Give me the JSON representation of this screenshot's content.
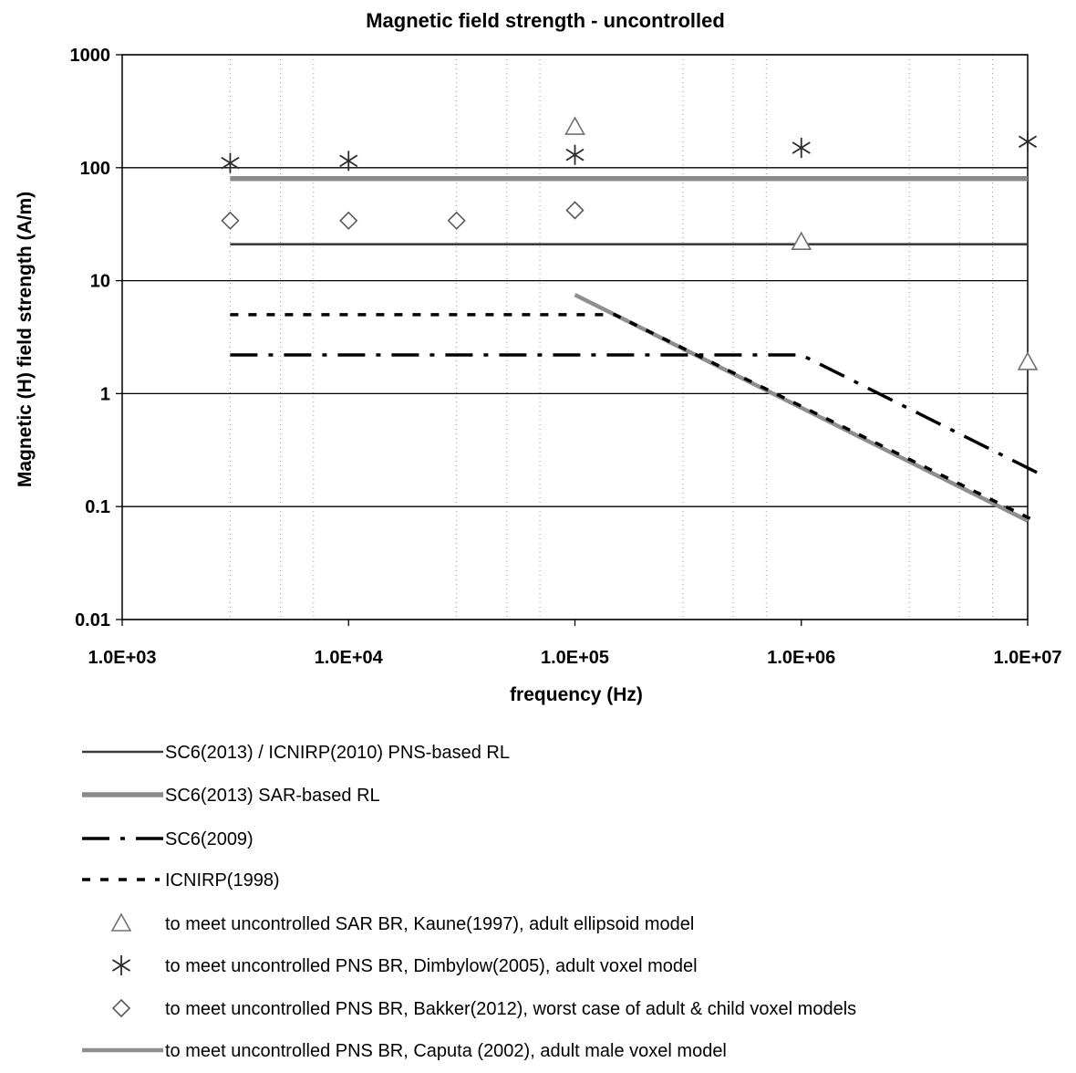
{
  "chart_data": {
    "type": "line",
    "title": "Magnetic field strength - uncontrolled",
    "xlabel": "frequency (Hz)",
    "ylabel": "Magnetic (H) field strength (A/m)",
    "xscale": "log",
    "yscale": "log",
    "xlim": [
      1000,
      10000000
    ],
    "ylim": [
      0.01,
      1000
    ],
    "x_ticks": [
      {
        "value": 1000,
        "label": "1.0E+03"
      },
      {
        "value": 10000,
        "label": "1.0E+04"
      },
      {
        "value": 100000,
        "label": "1.0E+05"
      },
      {
        "value": 1000000,
        "label": "1.0E+06"
      },
      {
        "value": 10000000,
        "label": "1.0E+07"
      }
    ],
    "y_ticks": [
      {
        "value": 0.01,
        "label": "0.01"
      },
      {
        "value": 0.1,
        "label": "0.1"
      },
      {
        "value": 1,
        "label": "1"
      },
      {
        "value": 10,
        "label": "10"
      },
      {
        "value": 100,
        "label": "100"
      },
      {
        "value": 1000,
        "label": "1000"
      }
    ],
    "grid": "horizontal major lines, dotted vertical minor lines",
    "legend_position": "bottom",
    "series": [
      {
        "name": "SC6(2013) / ICNIRP(2010) PNS-based RL",
        "kind": "line",
        "style": "solid-dark",
        "x": [
          3000,
          10000000
        ],
        "y": [
          21,
          21
        ]
      },
      {
        "name": "SC6(2013) SAR-based RL",
        "kind": "line",
        "style": "solid-gray-thick",
        "x": [
          3000,
          10000000
        ],
        "y": [
          80,
          80
        ]
      },
      {
        "name": "SC6(2009)",
        "kind": "line",
        "style": "dash-dot",
        "x": [
          3000,
          1000000,
          11000000
        ],
        "y": [
          2.2,
          2.2,
          0.2
        ]
      },
      {
        "name": "ICNIRP(1998)",
        "kind": "line",
        "style": "dotted",
        "x": [
          3000,
          150000,
          11000000
        ],
        "y": [
          5,
          5,
          0.073
        ]
      },
      {
        "name": "to meet uncontrolled SAR BR, Kaune(1997), adult ellipsoid model",
        "kind": "marker",
        "marker": "triangle",
        "x": [
          100000,
          1000000,
          10000000
        ],
        "y": [
          230,
          22,
          1.9
        ]
      },
      {
        "name": "to meet uncontrolled PNS BR, Dimbylow(2005), adult voxel model",
        "kind": "marker",
        "marker": "asterisk",
        "x": [
          3000,
          10000,
          100000,
          1000000,
          10000000
        ],
        "y": [
          110,
          115,
          130,
          150,
          170
        ]
      },
      {
        "name": "to meet uncontrolled PNS BR, Bakker(2012), worst case of adult & child voxel models",
        "kind": "marker",
        "marker": "diamond",
        "x": [
          3000,
          10000,
          30000,
          100000
        ],
        "y": [
          34,
          34,
          34,
          42
        ]
      },
      {
        "name": "to meet uncontrolled PNS BR, Caputa (2002), adult male voxel model",
        "kind": "line",
        "style": "gray-thick",
        "x": [
          100000,
          10000000
        ],
        "y": [
          7.5,
          0.075
        ]
      }
    ]
  }
}
